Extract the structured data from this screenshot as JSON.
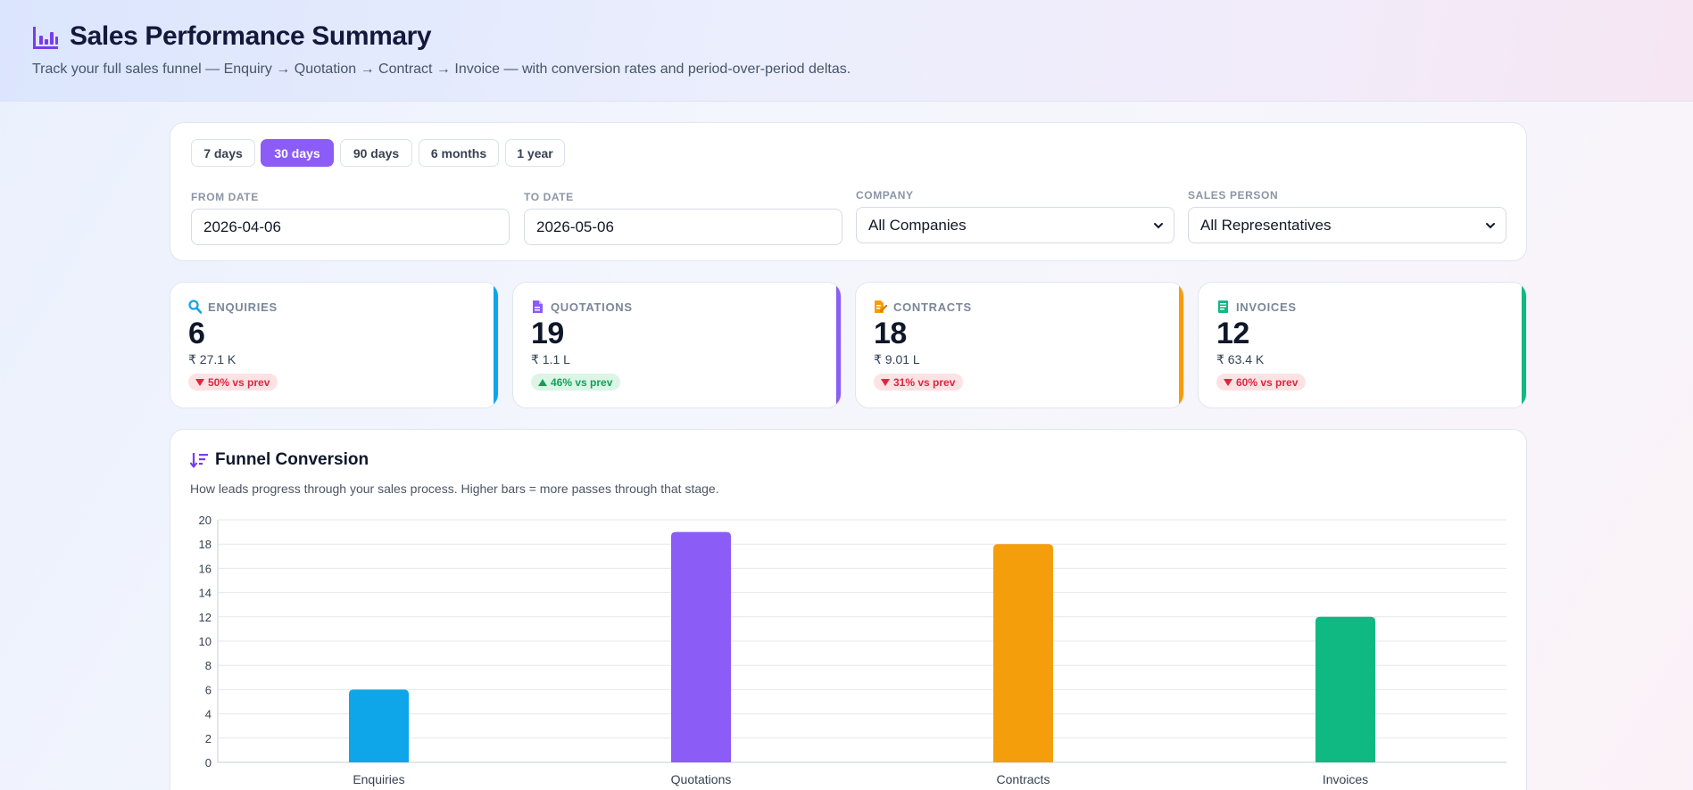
{
  "header": {
    "title": "Sales Performance Summary",
    "subtitle": "Track your full sales funnel — Enquiry → Quotation → Contract → Invoice — with conversion rates and period-over-period deltas."
  },
  "filters": {
    "presets": [
      "7 days",
      "30 days",
      "90 days",
      "6 months",
      "1 year"
    ],
    "active_preset": "30 days",
    "from_label": "FROM DATE",
    "from_value": "2026-04-06",
    "to_label": "TO DATE",
    "to_value": "2026-05-06",
    "company_label": "COMPANY",
    "company_value": "All Companies",
    "sales_label": "SALES PERSON",
    "sales_value": "All Representatives"
  },
  "stats": [
    {
      "label": "ENQUIRIES",
      "value": "6",
      "amount": "₹ 27.1 K",
      "delta": "50% vs prev",
      "direction": "down",
      "color": "#0ea5e9",
      "icon": "search-icon"
    },
    {
      "label": "QUOTATIONS",
      "value": "19",
      "amount": "₹ 1.1 L",
      "delta": "46% vs prev",
      "direction": "up",
      "color": "#8b5cf6",
      "icon": "document-icon"
    },
    {
      "label": "CONTRACTS",
      "value": "18",
      "amount": "₹ 9.01 L",
      "delta": "31% vs prev",
      "direction": "down",
      "color": "#f59e0b",
      "icon": "contract-icon"
    },
    {
      "label": "INVOICES",
      "value": "12",
      "amount": "₹ 63.4 K",
      "delta": "60% vs prev",
      "direction": "down",
      "color": "#10b981",
      "icon": "invoice-icon"
    }
  ],
  "funnel": {
    "title": "Funnel Conversion",
    "subtitle": "How leads progress through your sales process. Higher bars = more passes through that stage."
  },
  "chart_data": {
    "type": "bar",
    "categories": [
      "Enquiries",
      "Quotations",
      "Contracts",
      "Invoices"
    ],
    "values": [
      6,
      19,
      18,
      12
    ],
    "colors": [
      "#0ea5e9",
      "#8b5cf6",
      "#f59e0b",
      "#10b981"
    ],
    "ylim": [
      0,
      20
    ],
    "yticks": [
      0,
      2,
      4,
      6,
      8,
      10,
      12,
      14,
      16,
      18,
      20
    ],
    "grid": true,
    "legend": "none"
  }
}
